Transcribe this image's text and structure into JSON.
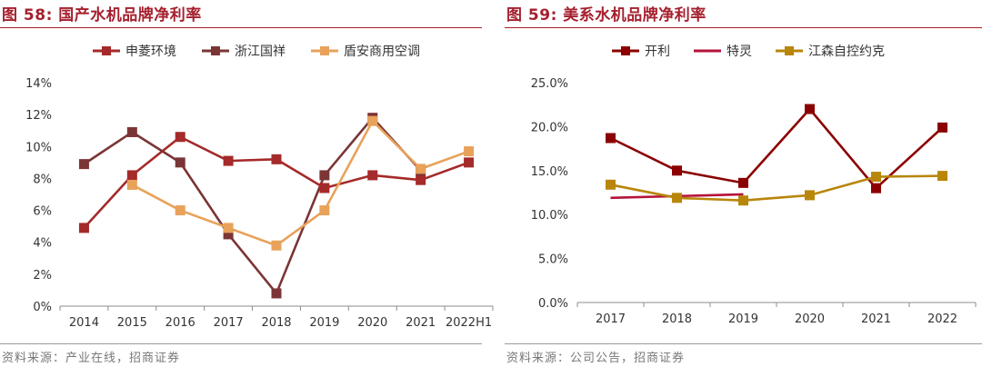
{
  "left": {
    "title": "图 58:  国产水机品牌净利率",
    "source": "资料来源：产业在线，招商证券",
    "chart_data": {
      "type": "line",
      "categories": [
        "2014",
        "2015",
        "2016",
        "2017",
        "2018",
        "2019",
        "2020",
        "2021",
        "2022H1"
      ],
      "ylim": [
        0,
        14
      ],
      "yticks": [
        0,
        2,
        4,
        6,
        8,
        10,
        12,
        14
      ],
      "y_tick_labels": [
        "0%",
        "2%",
        "4%",
        "6%",
        "8%",
        "10%",
        "12%",
        "14%"
      ],
      "legend_position": "top",
      "grid": false,
      "series": [
        {
          "name": "申菱环境",
          "color": "#a52a2a",
          "marker": "square",
          "values": [
            4.9,
            8.2,
            10.6,
            9.1,
            9.2,
            7.4,
            8.2,
            7.9,
            9.0
          ]
        },
        {
          "name": "浙江国祥",
          "color": "#7b3535",
          "marker": "square",
          "values": [
            8.9,
            10.9,
            9.0,
            4.5,
            0.8,
            8.2,
            11.8,
            8.5,
            null
          ]
        },
        {
          "name": "盾安商用空调",
          "color": "#e8a25a",
          "marker": "square",
          "values": [
            null,
            7.6,
            6.0,
            4.9,
            3.8,
            6.0,
            11.6,
            8.6,
            9.7
          ]
        }
      ]
    }
  },
  "right": {
    "title": "图 59:  美系水机品牌净利率",
    "source": "资料来源：公司公告，招商证券",
    "chart_data": {
      "type": "line",
      "categories": [
        "2017",
        "2018",
        "2019",
        "2020",
        "2021",
        "2022"
      ],
      "ylim": [
        0,
        25
      ],
      "yticks": [
        0,
        5,
        10,
        15,
        20,
        25
      ],
      "y_tick_labels": [
        "0.0%",
        "5.0%",
        "10.0%",
        "15.0%",
        "20.0%",
        "25.0%"
      ],
      "legend_position": "top",
      "grid": false,
      "series": [
        {
          "name": "开利",
          "color": "#8b0000",
          "marker": "square",
          "values": [
            18.7,
            15.0,
            13.6,
            22.0,
            13.0,
            19.9
          ]
        },
        {
          "name": "特灵",
          "color": "#b5123a",
          "marker": "none",
          "values": [
            11.9,
            12.1,
            12.3,
            null,
            null,
            null
          ]
        },
        {
          "name": "江森自控约克",
          "color": "#b8860b",
          "marker": "square",
          "values": [
            13.4,
            11.9,
            11.6,
            12.2,
            14.3,
            14.4
          ]
        }
      ]
    }
  }
}
